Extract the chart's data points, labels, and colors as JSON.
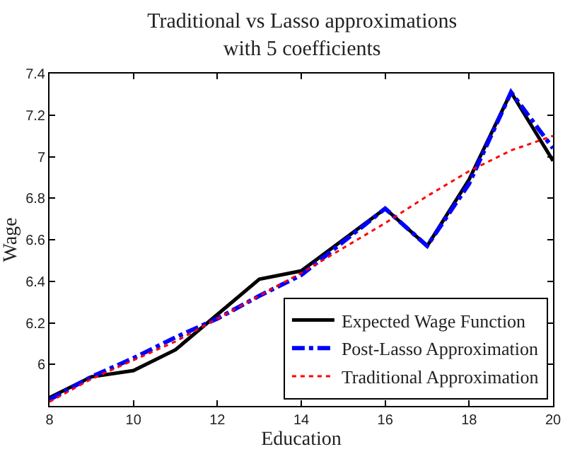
{
  "chart_data": {
    "type": "line",
    "title": "Traditional vs Lasso approximations\nwith 5 coefficients",
    "xlabel": "Education",
    "ylabel": "Wage",
    "x": [
      8,
      9,
      10,
      11,
      12,
      13,
      14,
      15,
      16,
      17,
      18,
      19,
      20
    ],
    "series": [
      {
        "name": "Expected Wage Function",
        "color": "#000000",
        "line_style": "solid",
        "values": [
          5.84,
          5.94,
          5.97,
          6.07,
          6.24,
          6.41,
          6.45,
          6.6,
          6.75,
          6.57,
          6.89,
          7.31,
          6.98
        ]
      },
      {
        "name": "Post-Lasso Approximation",
        "color": "#0000ff",
        "line_style": "dashdot",
        "values": [
          5.83,
          5.94,
          6.03,
          6.13,
          6.22,
          6.33,
          6.43,
          6.59,
          6.75,
          6.57,
          6.87,
          7.31,
          7.04
        ]
      },
      {
        "name": "Traditional Approximation",
        "color": "#ff0000",
        "line_style": "dotted",
        "values": [
          5.82,
          5.93,
          6.02,
          6.11,
          6.22,
          6.33,
          6.44,
          6.56,
          6.68,
          6.81,
          6.93,
          7.03,
          7.1
        ]
      }
    ],
    "xlim": [
      8,
      20
    ],
    "xticks": [
      8,
      10,
      12,
      14,
      16,
      18,
      20
    ],
    "ylim": [
      5.8,
      7.4
    ],
    "yticks": [
      6,
      6.2,
      6.4,
      6.6,
      6.8,
      7,
      7.2,
      7.4
    ],
    "grid": false,
    "legend": "bottom right",
    "marker": "none"
  }
}
